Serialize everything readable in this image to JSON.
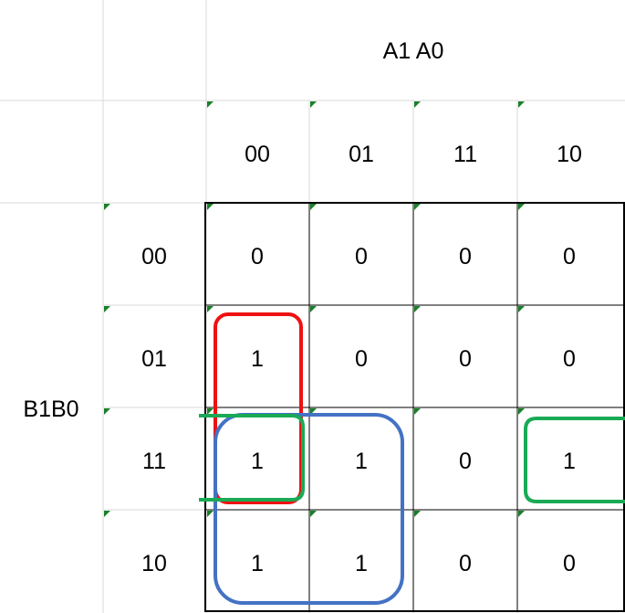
{
  "row_title": "B1B0",
  "col_title": "A1 A0",
  "col_headers": [
    "00",
    "01",
    "11",
    "10"
  ],
  "row_headers": [
    "00",
    "01",
    "11",
    "10"
  ],
  "cells": [
    [
      "0",
      "0",
      "0",
      "0"
    ],
    [
      "1",
      "0",
      "0",
      "0"
    ],
    [
      "1",
      "1",
      "0",
      "1"
    ],
    [
      "1",
      "1",
      "0",
      "0"
    ]
  ],
  "colors": {
    "gridline": "#d9d9d9",
    "border": "#000000",
    "comment_marker": "#1a7f2a",
    "group_red": "#ee1111",
    "group_green": "#1aaa55",
    "group_blue": "#4472c4"
  }
}
